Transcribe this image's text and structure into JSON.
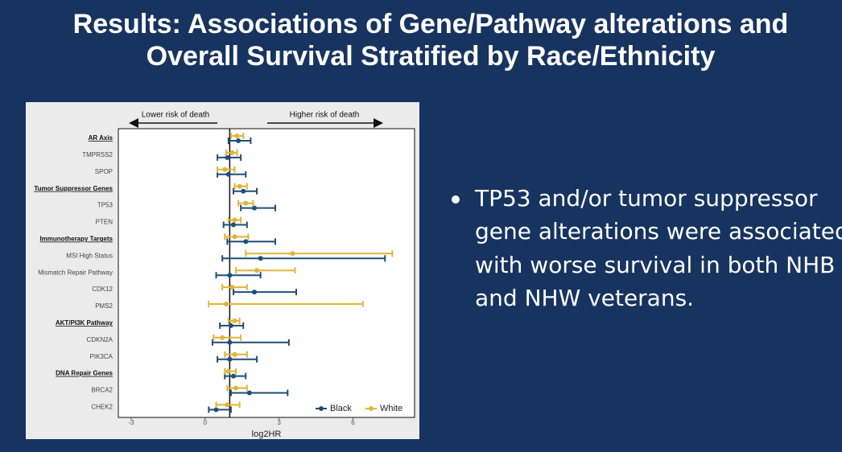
{
  "title": [
    "Results: Associations of Gene/Pathway alterations and",
    "Overall Survival Stratified by Race/Ethnicity"
  ],
  "bullet": [
    "TP53 and/or tumor suppressor",
    "gene alterations were associated",
    "with worse survival in both NHB",
    "and NHW veterans."
  ],
  "chart_data": {
    "type": "forest",
    "annotations": [
      "Lower risk of death",
      "Higher risk of death"
    ],
    "x_label": "log2HR",
    "xlim": [
      -3.52,
      8.5
    ],
    "xticks": [
      -3,
      0,
      3,
      6
    ],
    "ref_line": 1,
    "legend": "lower right",
    "categories": [
      {
        "label": "AR Axis",
        "header": true
      },
      {
        "label": "TMPRSS2",
        "header": false
      },
      {
        "label": "SPOP",
        "header": false
      },
      {
        "label": "Tumor Suppressor Genes",
        "header": true
      },
      {
        "label": "TP53",
        "header": false
      },
      {
        "label": "PTEN",
        "header": false
      },
      {
        "label": "Immunotherapy Targets",
        "header": true
      },
      {
        "label": "MSI High Status",
        "header": false
      },
      {
        "label": "Mismatch Repair Pathway",
        "header": false
      },
      {
        "label": "CDK12",
        "header": false
      },
      {
        "label": "PMS2",
        "header": false
      },
      {
        "label": "AKT/PI3K Pathway",
        "header": true
      },
      {
        "label": "CDKN2A",
        "header": false
      },
      {
        "label": "PIK3CA",
        "header": false
      },
      {
        "label": "DNA Repair Genes",
        "header": true
      },
      {
        "label": "BRCA2",
        "header": false
      },
      {
        "label": "CHEK2",
        "header": false
      }
    ],
    "series": [
      {
        "name": "Black",
        "color": "#1f4e79",
        "values": [
          1.35,
          0.9,
          0.95,
          1.55,
          2.0,
          1.15,
          1.65,
          2.25,
          1.0,
          2.0,
          null,
          1.05,
          1.0,
          1.0,
          1.15,
          1.8,
          0.45
        ],
        "lower": [
          0.95,
          0.5,
          0.5,
          1.15,
          1.45,
          0.75,
          0.9,
          0.7,
          0.45,
          1.15,
          null,
          0.6,
          0.3,
          0.5,
          0.8,
          1.05,
          0.15
        ],
        "upper": [
          1.85,
          1.45,
          1.65,
          2.1,
          2.85,
          1.7,
          2.85,
          7.3,
          2.25,
          3.7,
          null,
          1.55,
          3.4,
          2.1,
          1.65,
          3.35,
          1.05
        ]
      },
      {
        "name": "White",
        "color": "#e3b437",
        "values": [
          1.3,
          1.1,
          0.8,
          1.4,
          1.65,
          1.2,
          1.2,
          3.55,
          2.1,
          1.1,
          0.85,
          1.2,
          0.7,
          1.2,
          0.95,
          1.25,
          0.9
        ],
        "lower": [
          1.05,
          0.85,
          0.5,
          1.2,
          1.35,
          0.95,
          0.8,
          1.65,
          1.25,
          0.7,
          0.15,
          0.95,
          0.35,
          0.8,
          0.8,
          0.9,
          0.45
        ],
        "upper": [
          1.55,
          1.3,
          1.2,
          1.7,
          1.95,
          1.45,
          1.75,
          7.6,
          3.65,
          1.7,
          6.4,
          1.4,
          1.45,
          1.7,
          1.25,
          1.7,
          1.4
        ]
      }
    ]
  }
}
